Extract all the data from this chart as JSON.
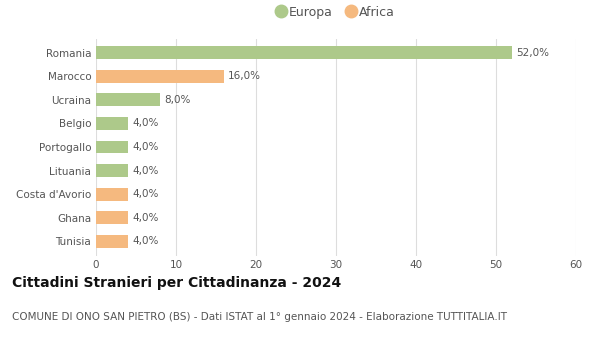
{
  "categories": [
    "Romania",
    "Marocco",
    "Ucraina",
    "Belgio",
    "Portogallo",
    "Lituania",
    "Costa d'Avorio",
    "Ghana",
    "Tunisia"
  ],
  "values": [
    52.0,
    16.0,
    8.0,
    4.0,
    4.0,
    4.0,
    4.0,
    4.0,
    4.0
  ],
  "colors": [
    "#adc98a",
    "#f5b97f",
    "#adc98a",
    "#adc98a",
    "#adc98a",
    "#adc98a",
    "#f5b97f",
    "#f5b97f",
    "#f5b97f"
  ],
  "labels": [
    "52,0%",
    "16,0%",
    "8,0%",
    "4,0%",
    "4,0%",
    "4,0%",
    "4,0%",
    "4,0%",
    "4,0%"
  ],
  "legend_europa_color": "#adc98a",
  "legend_africa_color": "#f5b97f",
  "legend_europa_label": "Europa",
  "legend_africa_label": "Africa",
  "xlim": [
    0,
    60
  ],
  "xticks": [
    0,
    10,
    20,
    30,
    40,
    50,
    60
  ],
  "title": "Cittadini Stranieri per Cittadinanza - 2024",
  "subtitle": "COMUNE DI ONO SAN PIETRO (BS) - Dati ISTAT al 1° gennaio 2024 - Elaborazione TUTTITALIA.IT",
  "title_fontsize": 10,
  "subtitle_fontsize": 7.5,
  "label_fontsize": 7.5,
  "tick_fontsize": 7.5,
  "legend_fontsize": 9,
  "background_color": "#ffffff",
  "grid_color": "#dddddd",
  "bar_height": 0.55
}
